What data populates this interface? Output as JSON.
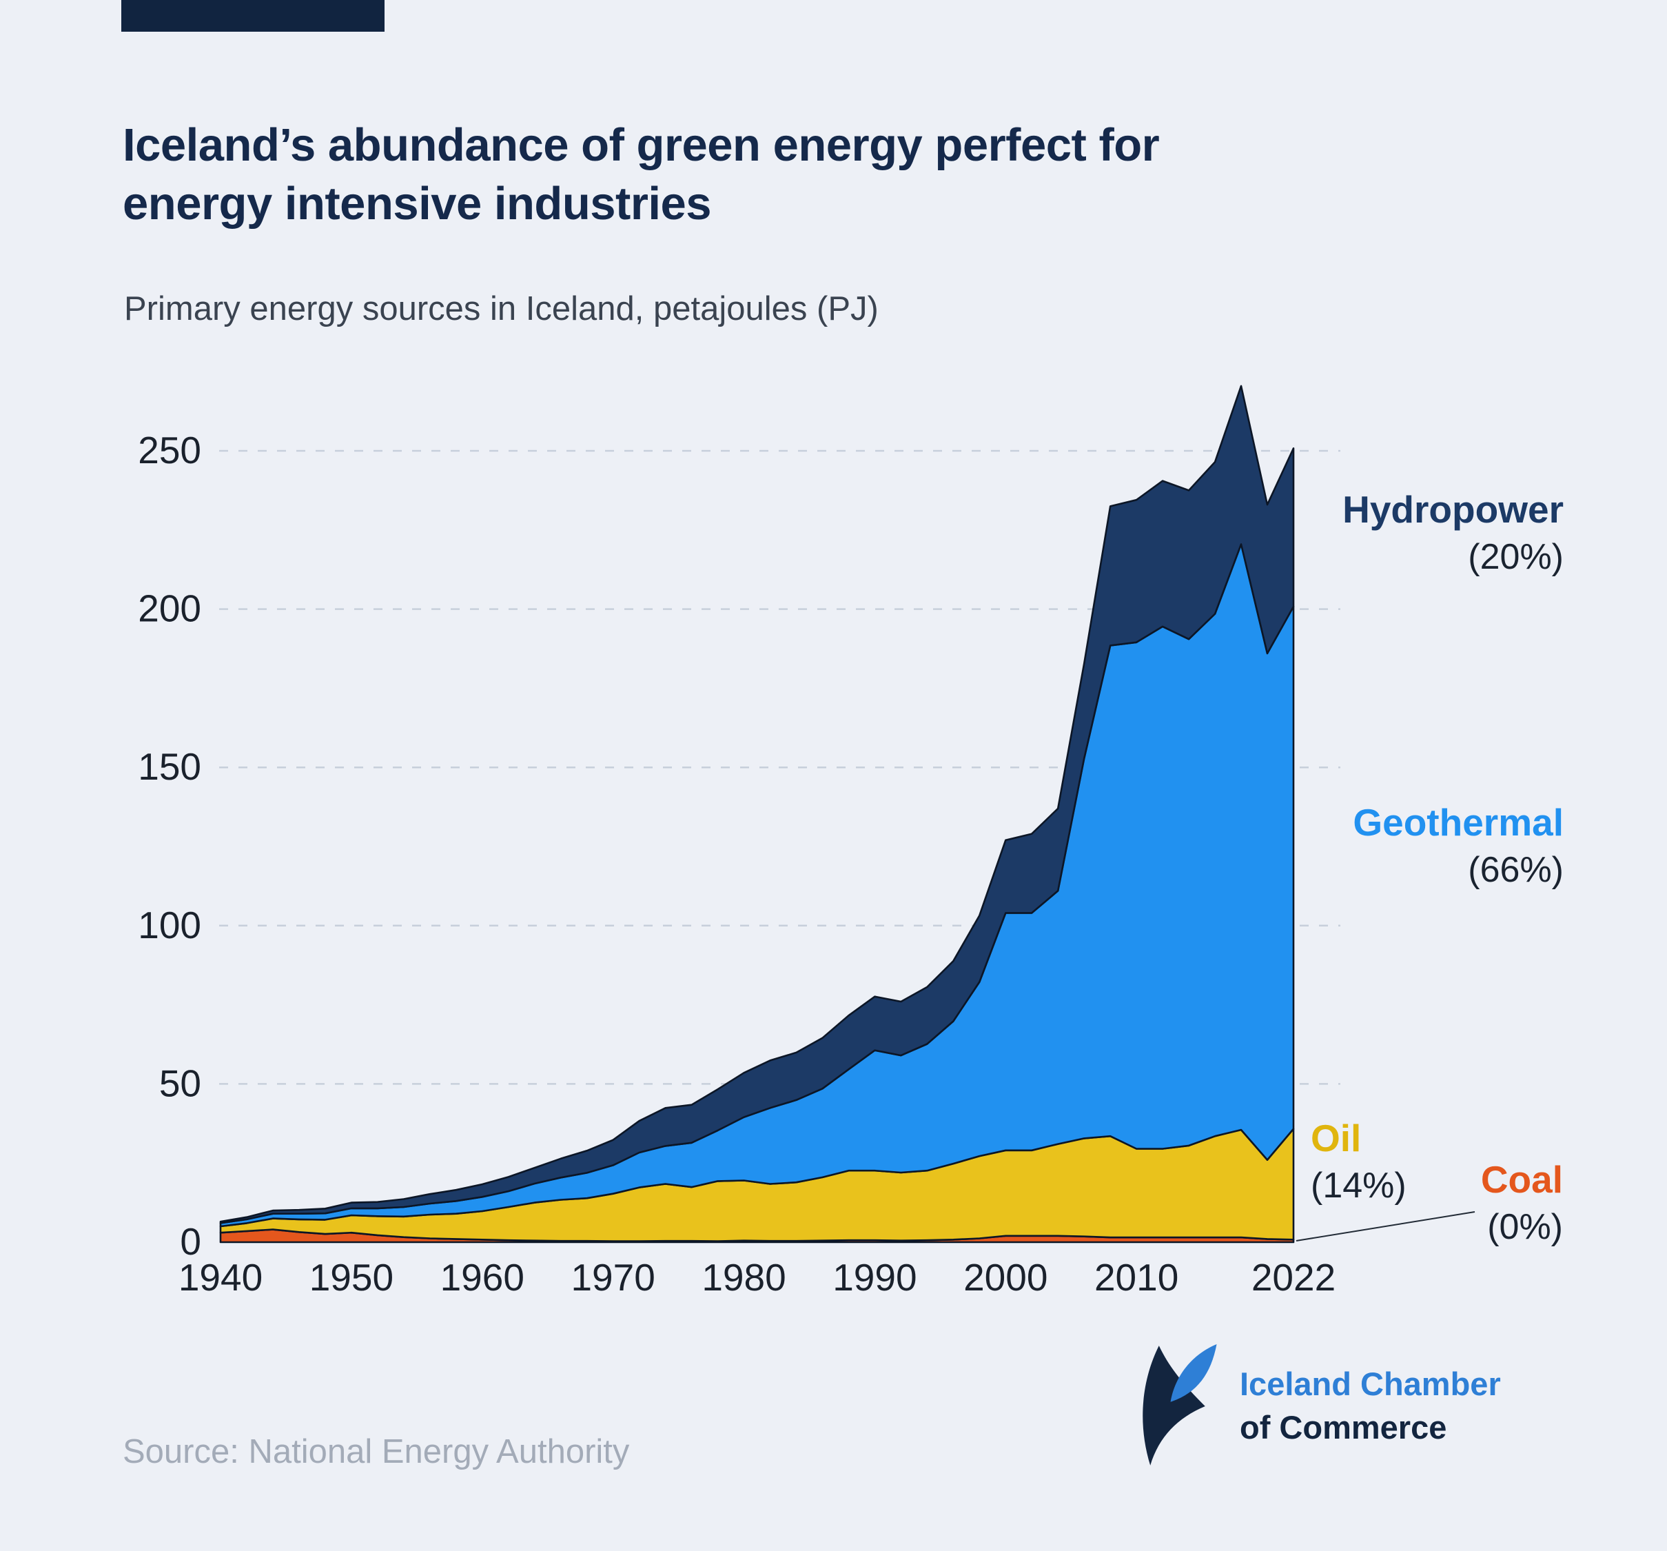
{
  "page": {
    "background": "#edf0f6",
    "accent_color": "#112440"
  },
  "header": {
    "title_line1": "Iceland’s abundance of green energy perfect for",
    "title_line2": "energy intensive industries",
    "subtitle": "Primary energy sources in Iceland, petajoules (PJ)"
  },
  "chart_data": {
    "type": "area",
    "stacked": true,
    "title": "Primary energy sources in Iceland, petajoules (PJ)",
    "unit": "PJ",
    "x": [
      1940,
      1942,
      1944,
      1946,
      1948,
      1950,
      1952,
      1954,
      1956,
      1958,
      1960,
      1962,
      1964,
      1966,
      1968,
      1970,
      1972,
      1974,
      1976,
      1978,
      1980,
      1982,
      1984,
      1986,
      1988,
      1990,
      1992,
      1994,
      1996,
      1998,
      2000,
      2002,
      2004,
      2006,
      2008,
      2010,
      2012,
      2014,
      2016,
      2018,
      2020,
      2022
    ],
    "series": [
      {
        "name": "Coal",
        "share_2022": "0%",
        "color": "#e4571d",
        "values": [
          3,
          3.5,
          4,
          3.2,
          2.6,
          3,
          2.2,
          1.6,
          1.2,
          1,
          0.8,
          0.6,
          0.5,
          0.4,
          0.4,
          0.3,
          0.3,
          0.4,
          0.4,
          0.3,
          0.5,
          0.4,
          0.4,
          0.5,
          0.6,
          0.6,
          0.5,
          0.6,
          0.8,
          1.2,
          2,
          2,
          2,
          1.8,
          1.5,
          1.5,
          1.5,
          1.5,
          1.5,
          1.5,
          1,
          0.8
        ]
      },
      {
        "name": "Oil",
        "share_2022": "14%",
        "color": "#e9c21c",
        "values": [
          2,
          2.5,
          3.5,
          4,
          4.5,
          5.5,
          6,
          6.5,
          7.5,
          8,
          9,
          10.5,
          12,
          13,
          13.5,
          15,
          17,
          18,
          17,
          19,
          19,
          18,
          18.5,
          20,
          22,
          22,
          21.5,
          22,
          24,
          26,
          27,
          27,
          29,
          31,
          32,
          28,
          28,
          29,
          32,
          34,
          25,
          35
        ]
      },
      {
        "name": "Geothermal",
        "share_2022": "66%",
        "color": "#2191f0",
        "values": [
          1,
          1.2,
          1.5,
          1.8,
          2,
          2.2,
          2.5,
          3,
          3.5,
          4,
          4.5,
          5,
          6,
          7,
          8,
          9,
          11,
          12,
          14,
          16,
          20,
          24,
          26,
          28,
          32,
          38,
          37,
          40,
          45,
          55,
          75,
          75,
          80,
          120,
          155,
          160,
          165,
          160,
          165,
          185,
          160,
          165
        ]
      },
      {
        "name": "Hydropower",
        "share_2022": "20%",
        "color": "#1c3a66",
        "values": [
          0.5,
          0.7,
          1,
          1.2,
          1.5,
          1.8,
          2,
          2.5,
          3,
          3.5,
          4,
          4.5,
          5,
          6,
          7,
          8,
          10,
          12,
          12,
          13,
          14,
          15,
          15,
          16,
          17,
          17,
          17,
          18,
          19,
          21,
          23,
          25,
          26,
          30,
          44,
          45,
          46,
          47,
          48,
          50,
          47,
          50
        ]
      }
    ],
    "ylim": [
      0,
      275
    ],
    "yticks": [
      0,
      50,
      100,
      150,
      200,
      250
    ],
    "xticks": [
      1940,
      1950,
      1960,
      1970,
      1980,
      1990,
      2000,
      2010,
      2022
    ],
    "grid": true,
    "grid_color": "#c7cfdb",
    "outline_color": "#0c1626",
    "axis_label_color": "#1a212c",
    "legend_position": "right"
  },
  "annotations": {
    "hydropower": {
      "label": "Hydropower",
      "pct": "(20%)"
    },
    "geothermal": {
      "label": "Geothermal",
      "pct": "(66%)"
    },
    "oil": {
      "label": "Oil",
      "pct": "(14%)"
    },
    "coal": {
      "label": "Coal",
      "pct": "(0%)"
    }
  },
  "footer": {
    "source": "Source: National Energy Authority",
    "logo_line1": "Iceland Chamber",
    "logo_line2": "of Commerce"
  }
}
